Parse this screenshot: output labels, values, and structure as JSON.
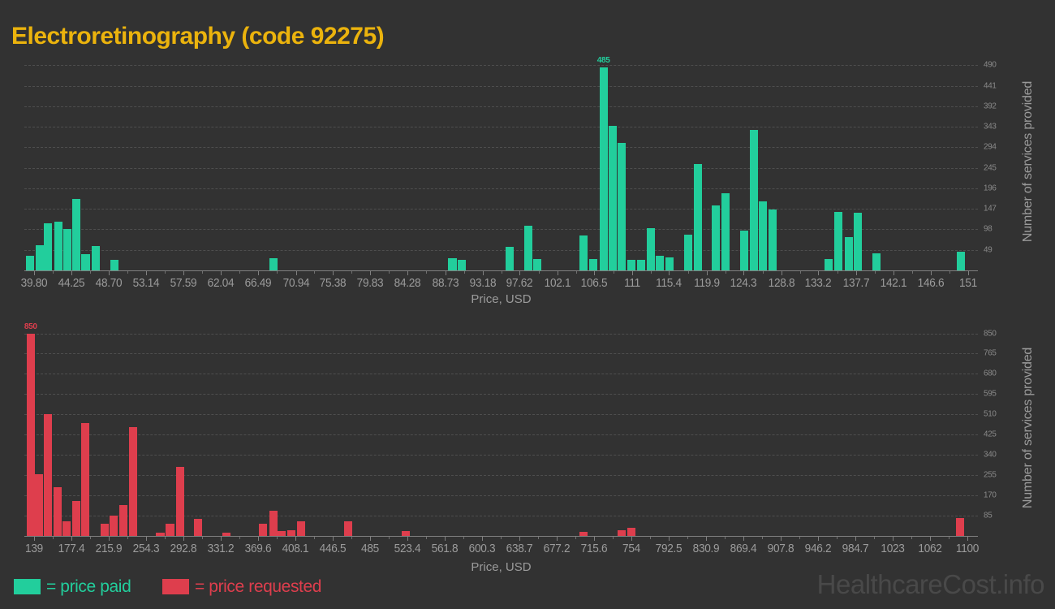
{
  "title": "Electroretinography (code 92275)",
  "watermark": "HealthcareCost.info",
  "colors": {
    "background": "#323232",
    "paid": "#22CE9C",
    "requested": "#DE3E4D",
    "title": "#EBB30D",
    "grid": "#4E4E4E",
    "axis": "#808080",
    "x_tick_label": "#9B9B9B",
    "y_tick_label": "#8A8A8A",
    "axis_title": "#9B9B9B",
    "watermark": "#494949"
  },
  "legend": {
    "paid_label": "= price paid",
    "requested_label": "= price requested"
  },
  "chart_data": [
    {
      "type": "bar",
      "series_name": "price paid",
      "xlabel": "Price, USD",
      "ylabel": "Number of services provided",
      "color_key": "paid",
      "peak_label": "485",
      "legend_position": "bottom-left",
      "grid": "dashed-horizontal",
      "x_ticks": [
        "39.80",
        "44.25",
        "48.70",
        "53.14",
        "57.59",
        "62.04",
        "66.49",
        "70.94",
        "75.38",
        "79.83",
        "84.28",
        "88.73",
        "93.18",
        "97.62",
        "102.1",
        "106.5",
        "111",
        "115.4",
        "119.9",
        "124.3",
        "128.8",
        "133.2",
        "137.7",
        "142.1",
        "146.6",
        "151"
      ],
      "y_ticks": [
        49,
        98,
        147,
        196,
        245,
        294,
        343,
        392,
        441,
        490
      ],
      "x_range": [
        38.6,
        152.2
      ],
      "y_range": [
        0,
        520
      ],
      "bar_width_usd": 0.97,
      "bars": [
        {
          "x": 39.3,
          "v": 35
        },
        {
          "x": 40.4,
          "v": 60
        },
        {
          "x": 41.4,
          "v": 113
        },
        {
          "x": 42.7,
          "v": 116
        },
        {
          "x": 43.7,
          "v": 99
        },
        {
          "x": 44.8,
          "v": 170
        },
        {
          "x": 45.9,
          "v": 38
        },
        {
          "x": 47.1,
          "v": 59
        },
        {
          "x": 49.3,
          "v": 25
        },
        {
          "x": 68.3,
          "v": 30
        },
        {
          "x": 89.6,
          "v": 30
        },
        {
          "x": 90.7,
          "v": 25
        },
        {
          "x": 96.4,
          "v": 57
        },
        {
          "x": 98.6,
          "v": 106
        },
        {
          "x": 99.7,
          "v": 27
        },
        {
          "x": 105.2,
          "v": 83
        },
        {
          "x": 106.4,
          "v": 27
        },
        {
          "x": 107.6,
          "v": 485
        },
        {
          "x": 108.7,
          "v": 345
        },
        {
          "x": 109.8,
          "v": 305
        },
        {
          "x": 110.9,
          "v": 26
        },
        {
          "x": 112.1,
          "v": 26
        },
        {
          "x": 113.2,
          "v": 100
        },
        {
          "x": 114.3,
          "v": 34
        },
        {
          "x": 115.5,
          "v": 31
        },
        {
          "x": 117.7,
          "v": 85
        },
        {
          "x": 118.8,
          "v": 255
        },
        {
          "x": 121.0,
          "v": 155
        },
        {
          "x": 122.1,
          "v": 185
        },
        {
          "x": 124.4,
          "v": 95
        },
        {
          "x": 125.5,
          "v": 335
        },
        {
          "x": 126.6,
          "v": 165
        },
        {
          "x": 127.7,
          "v": 145
        },
        {
          "x": 134.4,
          "v": 27
        },
        {
          "x": 135.6,
          "v": 140
        },
        {
          "x": 136.8,
          "v": 80
        },
        {
          "x": 137.9,
          "v": 137
        },
        {
          "x": 140.1,
          "v": 40
        },
        {
          "x": 150.2,
          "v": 45
        }
      ]
    },
    {
      "type": "bar",
      "series_name": "price requested",
      "xlabel": "Price, USD",
      "ylabel": "Number of services provided",
      "color_key": "requested",
      "peak_label": "850",
      "grid": "dashed-horizontal",
      "x_ticks": [
        "139",
        "177.4",
        "215.9",
        "254.3",
        "292.8",
        "331.2",
        "369.6",
        "408.1",
        "446.5",
        "485",
        "523.4",
        "561.8",
        "600.3",
        "638.7",
        "677.2",
        "715.6",
        "754",
        "792.5",
        "830.9",
        "869.4",
        "907.8",
        "946.2",
        "984.7",
        "1023",
        "1062",
        "1100"
      ],
      "y_ticks": [
        85,
        170,
        255,
        340,
        425,
        510,
        595,
        680,
        765,
        850
      ],
      "x_range": [
        129,
        1111
      ],
      "y_range": [
        0,
        903
      ],
      "bar_width_usd": 8.4,
      "bars": [
        {
          "x": 135.5,
          "v": 850
        },
        {
          "x": 144,
          "v": 260
        },
        {
          "x": 153,
          "v": 510
        },
        {
          "x": 163,
          "v": 205
        },
        {
          "x": 172.5,
          "v": 60
        },
        {
          "x": 182.5,
          "v": 145
        },
        {
          "x": 192,
          "v": 475
        },
        {
          "x": 211.5,
          "v": 50
        },
        {
          "x": 221,
          "v": 85
        },
        {
          "x": 231,
          "v": 130
        },
        {
          "x": 241,
          "v": 455
        },
        {
          "x": 269,
          "v": 15
        },
        {
          "x": 279,
          "v": 50
        },
        {
          "x": 289.5,
          "v": 290
        },
        {
          "x": 307.5,
          "v": 70
        },
        {
          "x": 337.5,
          "v": 15
        },
        {
          "x": 375,
          "v": 50
        },
        {
          "x": 385.5,
          "v": 105
        },
        {
          "x": 394,
          "v": 20
        },
        {
          "x": 404,
          "v": 25
        },
        {
          "x": 414,
          "v": 60
        },
        {
          "x": 462.5,
          "v": 60
        },
        {
          "x": 521.5,
          "v": 20
        },
        {
          "x": 705,
          "v": 17
        },
        {
          "x": 744,
          "v": 25
        },
        {
          "x": 754,
          "v": 35
        },
        {
          "x": 1093,
          "v": 75
        }
      ]
    }
  ]
}
